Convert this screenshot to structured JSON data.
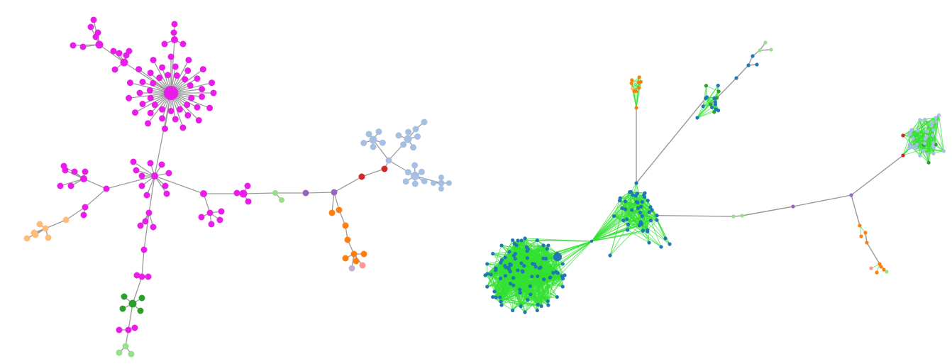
{
  "colors": {
    "magenta": "#e81de8",
    "light_blue": "#a6bfe2",
    "dark_green": "#2ca02c",
    "light_green": "#98df8a",
    "orange": "#ff7f0e",
    "light_orange": "#ffbb78",
    "red": "#d62728",
    "purple": "#9467bd",
    "pink": "#ff9896",
    "lilac": "#c5b0d5",
    "steel_blue": "#1f77b4",
    "edge_gray": "#9a9a9a",
    "edge_green": "#33e033"
  },
  "panels": [
    {
      "name": "left-graph",
      "style": "tree"
    },
    {
      "name": "right-graph",
      "style": "clustered"
    }
  ]
}
